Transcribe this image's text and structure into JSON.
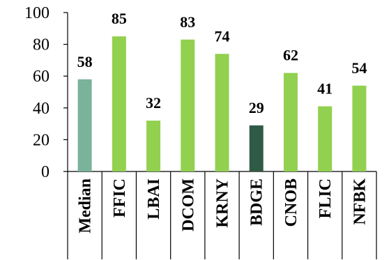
{
  "chart_data": {
    "type": "bar",
    "categories": [
      "Median",
      "FFIC",
      "LBAI",
      "DCOM",
      "KRNY",
      "BDGE",
      "CNOB",
      "FLIC",
      "NFBK"
    ],
    "values": [
      58,
      85,
      32,
      83,
      74,
      29,
      62,
      41,
      54
    ],
    "data_labels": [
      "58",
      "85",
      "32",
      "83",
      "74",
      "29",
      "62",
      "41",
      "54"
    ],
    "bar_colors": [
      "#7ab39a",
      "#92d050",
      "#92d050",
      "#92d050",
      "#92d050",
      "#2f5a46",
      "#92d050",
      "#92d050",
      "#92d050"
    ],
    "ylim": [
      0,
      100
    ],
    "yticks": [
      0,
      20,
      40,
      60,
      80,
      100
    ],
    "ytick_labels": [
      "0",
      "20",
      "40",
      "60",
      "80",
      "100"
    ],
    "grid": false,
    "legend": "none"
  }
}
